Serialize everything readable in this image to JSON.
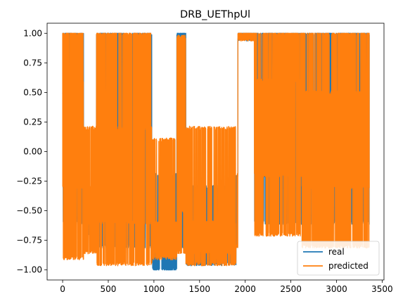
{
  "chart_data": {
    "type": "line",
    "title": "DRB_UEThpUl",
    "xlabel": "",
    "ylabel": "",
    "xlim": [
      -170,
      3520
    ],
    "ylim": [
      -1.085,
      1.085
    ],
    "xticks": [
      0,
      500,
      1000,
      1500,
      2000,
      2500,
      3000,
      3500
    ],
    "yticks": [
      -1.0,
      -0.75,
      -0.5,
      -0.25,
      0.0,
      0.25,
      0.5,
      0.75,
      1.0
    ],
    "xtick_labels": [
      "0",
      "500",
      "1000",
      "1500",
      "2000",
      "2500",
      "3000",
      "3500"
    ],
    "ytick_labels": [
      "−1.00",
      "−0.75",
      "−0.50",
      "−0.25",
      "0.00",
      "0.25",
      "0.50",
      "0.75",
      "1.00"
    ],
    "grid": false,
    "legend": {
      "position": "lower-right"
    },
    "n_points": 3360,
    "series": [
      {
        "name": "real",
        "color": "#1f77b4",
        "segments": [
          {
            "x": [
              0,
              230
            ],
            "levels": [
              1.0,
              -0.3,
              -0.6,
              0.5
            ]
          },
          {
            "x": [
              230,
              370
            ],
            "levels": [
              -0.2,
              -0.6,
              -0.7,
              -0.3
            ]
          },
          {
            "x": [
              370,
              980
            ],
            "levels": [
              1.0,
              -0.6,
              -0.8,
              0.0
            ]
          },
          {
            "x": [
              980,
              1250
            ],
            "levels": [
              -0.2,
              -0.6,
              -0.8,
              -1.0
            ]
          },
          {
            "x": [
              1250,
              1350
            ],
            "levels": [
              1.0,
              -0.5,
              -0.8
            ]
          },
          {
            "x": [
              1350,
              1900
            ],
            "levels": [
              -0.3,
              -0.6,
              -0.8,
              -0.95
            ]
          },
          {
            "x": [
              1900,
              1920
            ],
            "levels": [
              -0.2,
              -0.8
            ]
          },
          {
            "x": [
              1920,
              2100
            ],
            "levels": [
              1.0,
              0.95
            ]
          },
          {
            "x": [
              2100,
              2620
            ],
            "levels": [
              1.0,
              -0.2,
              -0.6,
              0.5
            ]
          },
          {
            "x": [
              2620,
              3360
            ],
            "levels": [
              1.0,
              -0.2,
              -0.6,
              0.5
            ]
          }
        ]
      },
      {
        "name": "predicted",
        "color": "#ff7f0e",
        "segments": [
          {
            "x": [
              0,
              230
            ],
            "levels": [
              1.0,
              -0.3,
              -0.9,
              0.6
            ]
          },
          {
            "x": [
              230,
              370
            ],
            "levels": [
              0.2,
              -0.6,
              -0.85,
              -0.3
            ]
          },
          {
            "x": [
              370,
              980
            ],
            "levels": [
              1.0,
              -0.6,
              -0.95,
              0.2
            ]
          },
          {
            "x": [
              980,
              1250
            ],
            "levels": [
              0.1,
              -0.6,
              -0.9,
              -0.85
            ]
          },
          {
            "x": [
              1250,
              1350
            ],
            "levels": [
              0.97,
              -0.5,
              -0.85
            ]
          },
          {
            "x": [
              1350,
              1900
            ],
            "levels": [
              0.2,
              -0.6,
              -0.85,
              -0.95
            ]
          },
          {
            "x": [
              1900,
              1920
            ],
            "levels": [
              -0.2,
              -0.8
            ]
          },
          {
            "x": [
              1920,
              2100
            ],
            "levels": [
              0.95,
              1.0
            ]
          },
          {
            "x": [
              2100,
              2620
            ],
            "levels": [
              1.0,
              -0.2,
              -0.7,
              0.6
            ]
          },
          {
            "x": [
              2620,
              3360
            ],
            "levels": [
              1.0,
              -0.3,
              -0.8,
              0.5
            ]
          }
        ]
      }
    ]
  }
}
